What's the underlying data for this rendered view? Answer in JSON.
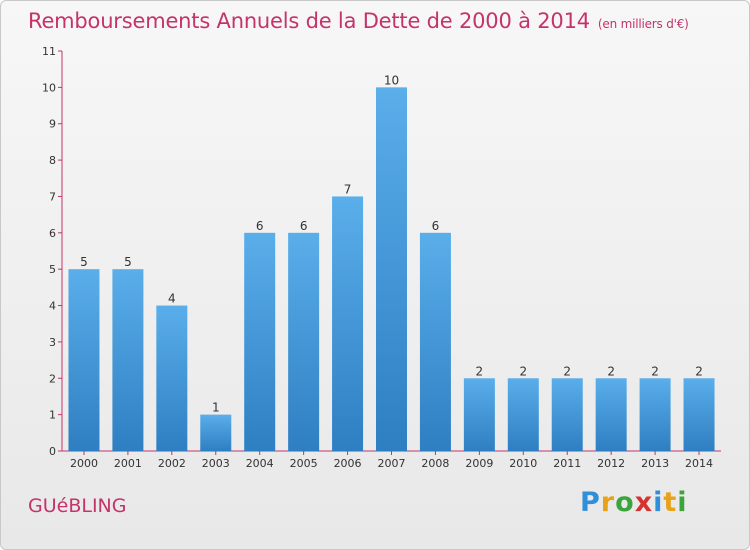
{
  "header": {
    "title": "Remboursements Annuels de la Dette de 2000 à 2014",
    "unit": "(en milliers d'€)"
  },
  "footer": {
    "city": "GUéBLING",
    "logo_letters": [
      {
        "char": "P",
        "color": "#2f8fd8"
      },
      {
        "char": "r",
        "color": "#e8a21a"
      },
      {
        "char": "o",
        "color": "#3aa53a"
      },
      {
        "char": "x",
        "color": "#d6322e"
      },
      {
        "char": "i",
        "color": "#2f8fd8"
      },
      {
        "char": "t",
        "color": "#e8a21a"
      },
      {
        "char": "i",
        "color": "#3aa53a"
      }
    ]
  },
  "chart_data": {
    "type": "bar",
    "title": "Remboursements Annuels de la Dette de 2000 à 2014",
    "subtitle": "(en milliers d'€)",
    "categories": [
      "2000",
      "2001",
      "2002",
      "2003",
      "2004",
      "2005",
      "2006",
      "2007",
      "2008",
      "2009",
      "2010",
      "2011",
      "2012",
      "2013",
      "2014"
    ],
    "values": [
      5,
      5,
      4,
      1,
      6,
      6,
      7,
      10,
      6,
      2,
      2,
      2,
      2,
      2,
      2
    ],
    "ylim": [
      0,
      11
    ],
    "yticks": [
      "0",
      "1",
      "2",
      "3",
      "4",
      "5",
      "6",
      "7",
      "8",
      "9",
      "10",
      "11"
    ],
    "grid": false,
    "bar_color": "#3d95d8",
    "axis_color": "#c4336b"
  }
}
